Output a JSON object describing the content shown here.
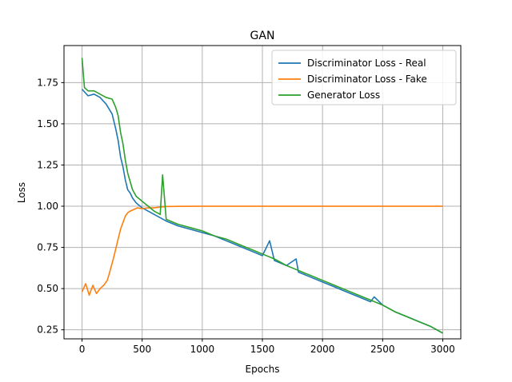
{
  "chart_data": {
    "type": "line",
    "title": "GAN",
    "xlabel": "Epochs",
    "ylabel": "Loss",
    "xlim": [
      -150,
      3150
    ],
    "ylim": [
      0.195,
      1.975
    ],
    "xticks": [
      0,
      500,
      1000,
      1500,
      2000,
      2500,
      3000
    ],
    "xtick_labels": [
      "0",
      "500",
      "1000",
      "1500",
      "2000",
      "2500",
      "3000"
    ],
    "yticks": [
      0.25,
      0.5,
      0.75,
      1.0,
      1.25,
      1.5,
      1.75
    ],
    "ytick_labels": [
      "0.25",
      "0.50",
      "0.75",
      "1.00",
      "1.25",
      "1.50",
      "1.75"
    ],
    "grid": true,
    "legend_position": "upper right",
    "series": [
      {
        "name": "Discriminator Loss - Real",
        "color": "#1f77b4",
        "x": [
          0,
          50,
          100,
          150,
          200,
          250,
          280,
          300,
          320,
          340,
          360,
          380,
          400,
          420,
          450,
          500,
          550,
          600,
          650,
          700,
          800,
          900,
          1000,
          1100,
          1200,
          1300,
          1400,
          1500,
          1560,
          1600,
          1700,
          1780,
          1800,
          1900,
          2000,
          2100,
          2200,
          2300,
          2400,
          2430,
          2500,
          2600,
          2700,
          2800,
          2900,
          3000
        ],
        "y": [
          1.71,
          1.67,
          1.68,
          1.66,
          1.62,
          1.56,
          1.47,
          1.4,
          1.3,
          1.24,
          1.16,
          1.1,
          1.08,
          1.05,
          1.02,
          0.99,
          0.97,
          0.95,
          0.93,
          0.91,
          0.88,
          0.86,
          0.84,
          0.82,
          0.79,
          0.76,
          0.73,
          0.7,
          0.79,
          0.67,
          0.64,
          0.68,
          0.6,
          0.57,
          0.54,
          0.51,
          0.48,
          0.45,
          0.42,
          0.45,
          0.4,
          0.36,
          0.33,
          0.3,
          0.27,
          0.23
        ]
      },
      {
        "name": "Discriminator Loss - Fake",
        "color": "#ff7f0e",
        "x": [
          0,
          30,
          60,
          90,
          120,
          150,
          180,
          210,
          230,
          260,
          280,
          300,
          320,
          340,
          360,
          380,
          400,
          430,
          460,
          500,
          550,
          600,
          650,
          700,
          800,
          1000,
          1500,
          2000,
          2500,
          3000
        ],
        "y": [
          0.48,
          0.53,
          0.46,
          0.52,
          0.47,
          0.5,
          0.52,
          0.55,
          0.6,
          0.68,
          0.74,
          0.8,
          0.86,
          0.9,
          0.94,
          0.96,
          0.97,
          0.98,
          0.99,
          0.985,
          0.99,
          0.99,
          0.995,
          0.998,
          0.999,
          1.0,
          1.0,
          1.0,
          1.0,
          1.0
        ]
      },
      {
        "name": "Generator Loss",
        "color": "#2ca02c",
        "x": [
          0,
          20,
          50,
          100,
          150,
          200,
          250,
          280,
          300,
          320,
          340,
          360,
          380,
          400,
          420,
          450,
          500,
          550,
          600,
          650,
          670,
          700,
          800,
          900,
          1000,
          1100,
          1200,
          1300,
          1400,
          1500,
          1600,
          1700,
          1800,
          1900,
          2000,
          2100,
          2200,
          2300,
          2400,
          2500,
          2600,
          2700,
          2800,
          2900,
          3000
        ],
        "y": [
          1.9,
          1.72,
          1.7,
          1.7,
          1.68,
          1.66,
          1.65,
          1.6,
          1.55,
          1.45,
          1.38,
          1.28,
          1.2,
          1.15,
          1.1,
          1.06,
          1.03,
          1.0,
          0.97,
          0.95,
          1.19,
          0.92,
          0.89,
          0.87,
          0.85,
          0.82,
          0.8,
          0.77,
          0.74,
          0.71,
          0.68,
          0.64,
          0.61,
          0.58,
          0.55,
          0.52,
          0.49,
          0.46,
          0.43,
          0.4,
          0.36,
          0.33,
          0.3,
          0.27,
          0.23
        ]
      }
    ]
  }
}
